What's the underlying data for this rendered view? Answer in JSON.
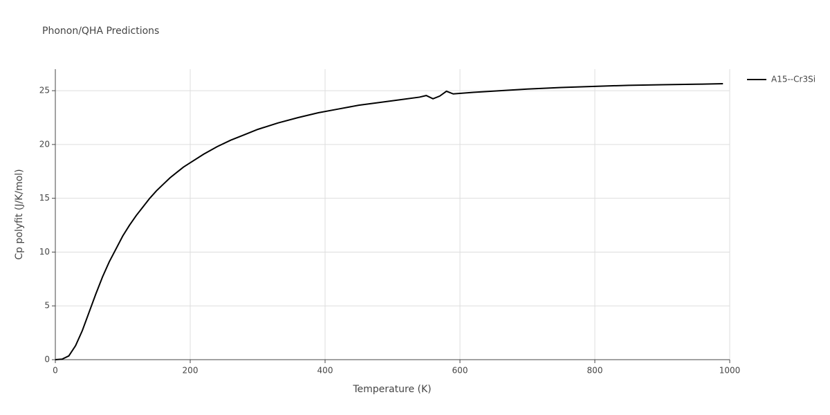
{
  "chart_data": {
    "type": "line",
    "title": "Phonon/QHA Predictions",
    "x_label": "Temperature (K)",
    "y_label": "Cp polyfit (J/K/mol)",
    "x": [
      0,
      10,
      20,
      30,
      40,
      50,
      60,
      70,
      80,
      90,
      100,
      110,
      120,
      130,
      140,
      150,
      160,
      170,
      180,
      190,
      200,
      220,
      240,
      260,
      280,
      300,
      330,
      360,
      390,
      420,
      450,
      480,
      510,
      540,
      550,
      560,
      570,
      580,
      590,
      620,
      660,
      700,
      750,
      800,
      850,
      900,
      950,
      990
    ],
    "series": [
      {
        "name": "A15--Cr3Si",
        "color": "#000000",
        "values": [
          0,
          0.05,
          0.35,
          1.3,
          2.7,
          4.4,
          6.1,
          7.7,
          9.1,
          10.3,
          11.5,
          12.5,
          13.4,
          14.2,
          15.0,
          15.7,
          16.3,
          16.9,
          17.4,
          17.9,
          18.3,
          19.1,
          19.8,
          20.4,
          20.9,
          21.4,
          22.0,
          22.5,
          22.95,
          23.3,
          23.65,
          23.9,
          24.15,
          24.4,
          24.55,
          24.25,
          24.5,
          24.95,
          24.7,
          24.85,
          25.0,
          25.15,
          25.3,
          25.4,
          25.5,
          25.55,
          25.6,
          25.65
        ]
      }
    ],
    "xlim": [
      0,
      1000
    ],
    "xticks": [
      0,
      200,
      400,
      600,
      800,
      1000
    ],
    "ylim": [
      0,
      27
    ],
    "yticks": [
      0,
      5,
      10,
      15,
      20,
      25
    ],
    "grid": true,
    "legend": "right"
  }
}
